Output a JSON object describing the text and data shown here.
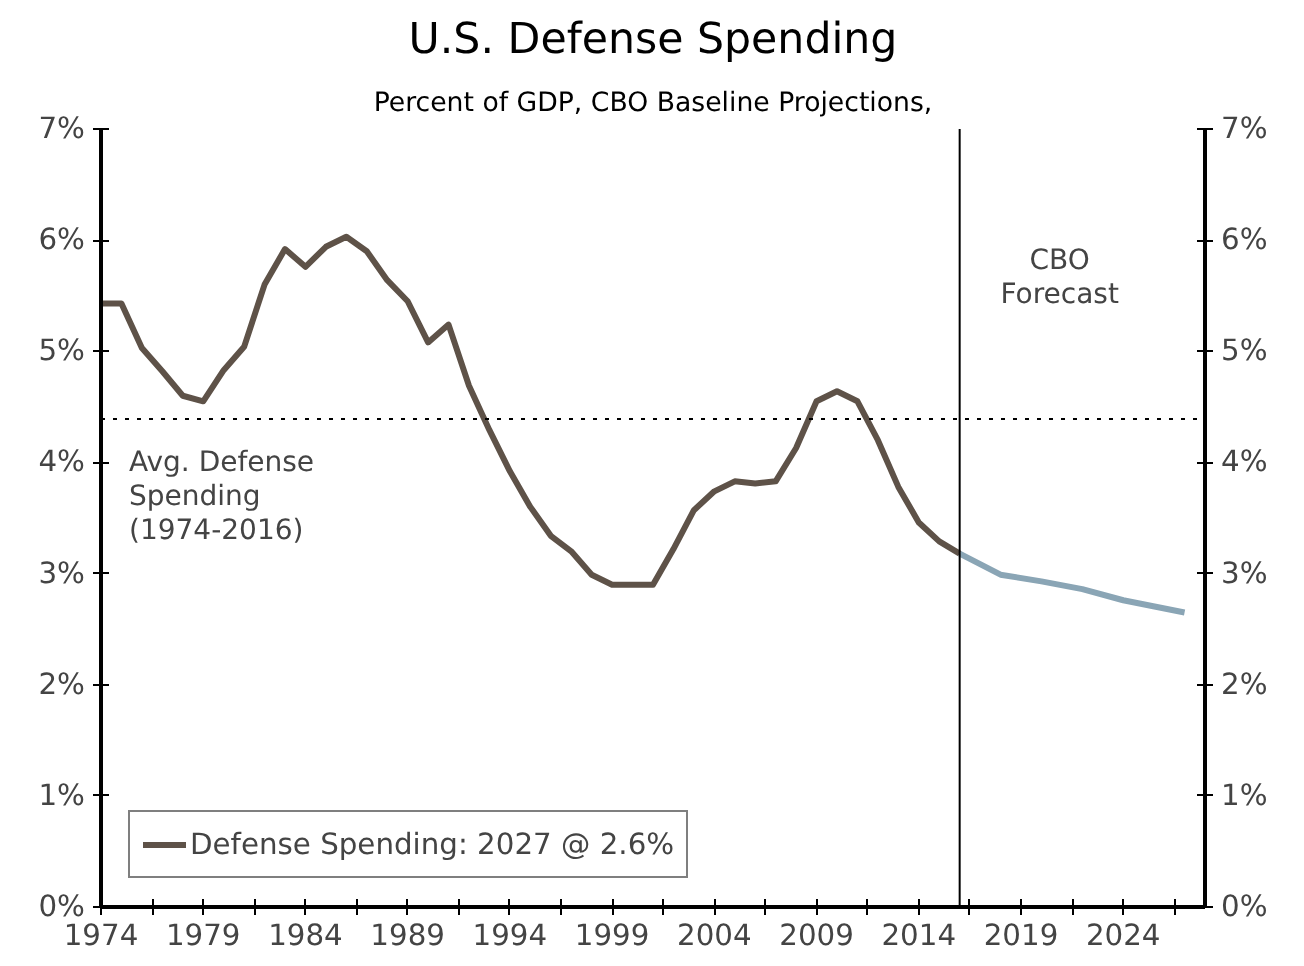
{
  "chart_data": {
    "type": "line",
    "title": "U.S. Defense Spending",
    "subtitle": "Percent of GDP, CBO Baseline Projections,",
    "series": [
      {
        "name": "Defense Spending: 2027 @ 2.6%",
        "color": "#5e5248",
        "x": [
          1974,
          1975,
          1976,
          1977,
          1978,
          1979,
          1980,
          1981,
          1982,
          1983,
          1984,
          1985,
          1986,
          1987,
          1988,
          1989,
          1990,
          1991,
          1992,
          1993,
          1994,
          1995,
          1996,
          1997,
          1998,
          1999,
          2000,
          2001,
          2002,
          2003,
          2004,
          2005,
          2006,
          2007,
          2008,
          2009,
          2010,
          2011,
          2012,
          2013,
          2014,
          2015,
          2016
        ],
        "values": [
          5.43,
          5.43,
          5.03,
          4.82,
          4.6,
          4.55,
          4.83,
          5.04,
          5.6,
          5.92,
          5.76,
          5.94,
          6.03,
          5.9,
          5.64,
          5.45,
          5.08,
          5.24,
          4.69,
          4.29,
          3.92,
          3.6,
          3.34,
          3.2,
          2.99,
          2.9,
          2.9,
          2.9,
          3.22,
          3.57,
          3.74,
          3.83,
          3.81,
          3.83,
          4.13,
          4.55,
          4.64,
          4.55,
          4.2,
          3.78,
          3.46,
          3.29,
          3.18
        ]
      },
      {
        "color": "#8aa5b5",
        "x": [
          2016,
          2018,
          2020,
          2022,
          2024,
          2027
        ],
        "values": [
          3.18,
          2.99,
          2.93,
          2.86,
          2.76,
          2.65
        ]
      }
    ],
    "xlim": [
      1974,
      2028
    ],
    "xticks": [
      1974,
      {
        "value": 1976.5,
        "label": null
      },
      1979,
      {
        "value": 1981.5,
        "label": null
      },
      1984,
      {
        "value": 1986.5,
        "label": null
      },
      1989,
      {
        "value": 1991.5,
        "label": null
      },
      1994,
      {
        "value": 1996.5,
        "label": null
      },
      1999,
      {
        "value": 2001.5,
        "label": null
      },
      2004,
      {
        "value": 2006.5,
        "label": null
      },
      2009,
      {
        "value": 2011.5,
        "label": null
      },
      2014,
      {
        "value": 2016.5,
        "label": null
      },
      2019,
      {
        "value": 2021.5,
        "label": null
      },
      2024,
      {
        "value": 2026.5,
        "label": null
      }
    ],
    "ylim": [
      0,
      7
    ],
    "yticks": [
      {
        "value": 0,
        "label": "0%"
      },
      {
        "value": 1,
        "label": "1%"
      },
      {
        "value": 2,
        "label": "2%"
      },
      {
        "value": 3,
        "label": "3%"
      },
      {
        "value": 4,
        "label": "4%"
      },
      {
        "value": 5,
        "label": "5%"
      },
      {
        "value": 6,
        "label": "6%"
      },
      {
        "value": 7,
        "label": "7%"
      }
    ],
    "y2lim": [
      0,
      7
    ],
    "y2ticks": [
      {
        "value": 0,
        "label": "0%"
      },
      {
        "value": 1,
        "label": "1%"
      },
      {
        "value": 2,
        "label": "2%"
      },
      {
        "value": 3,
        "label": "3%"
      },
      {
        "value": 4,
        "label": "4%"
      },
      {
        "value": 5,
        "label": "5%"
      },
      {
        "value": 6,
        "label": "6%"
      },
      {
        "value": 7,
        "label": "7%"
      }
    ],
    "ref_lines": [
      {
        "axis": "y",
        "value": 4.39,
        "label": "Avg. Defense\nSpending\n(1974-2016)",
        "color": "#000000",
        "line_style": "dotted"
      },
      {
        "axis": "x",
        "value": 2016,
        "label": "CBO\nForecast",
        "color": "#000000",
        "line_style": "solid"
      }
    ],
    "grid": false,
    "legend": "bottom left",
    "line_style": "solid"
  }
}
